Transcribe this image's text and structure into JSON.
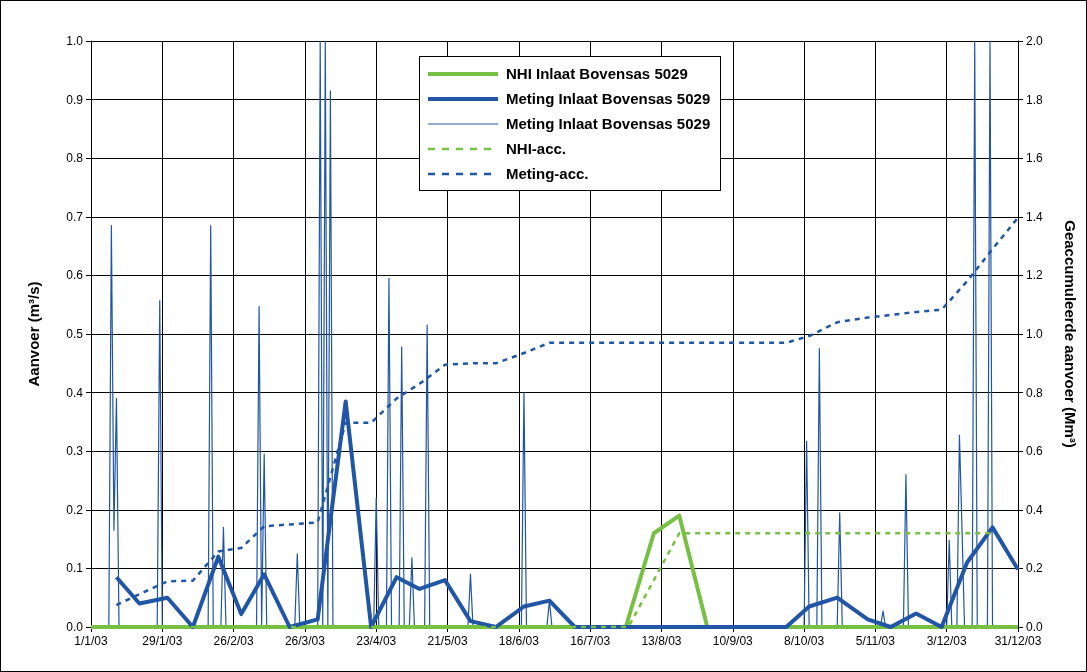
{
  "chart_data": {
    "type": "line",
    "xlabel": null,
    "ylabel": "Aanvoer (m³/s)",
    "y2label": "Geaccumuleerde aanvoer (Mm³)",
    "xlim": [
      "2003-01-01",
      "2003-12-31"
    ],
    "xticks": [
      {
        "value": "2003-01-01",
        "label": "1/1/03"
      },
      {
        "value": "2003-01-29",
        "label": "29/1/03"
      },
      {
        "value": "2003-02-26",
        "label": "26/2/03"
      },
      {
        "value": "2003-03-26",
        "label": "26/3/03"
      },
      {
        "value": "2003-04-23",
        "label": "23/4/03"
      },
      {
        "value": "2003-05-21",
        "label": "21/5/03"
      },
      {
        "value": "2003-06-18",
        "label": "18/6/03"
      },
      {
        "value": "2003-07-16",
        "label": "16/7/03"
      },
      {
        "value": "2003-08-13",
        "label": "13/8/03"
      },
      {
        "value": "2003-09-10",
        "label": "10/9/03"
      },
      {
        "value": "2003-10-08",
        "label": "8/10/03"
      },
      {
        "value": "2003-11-05",
        "label": "5/11/03"
      },
      {
        "value": "2003-12-03",
        "label": "3/12/03"
      },
      {
        "value": "2003-12-31",
        "label": "31/12/03"
      }
    ],
    "ylim": [
      0,
      1
    ],
    "yticks": [
      {
        "value": 0,
        "label": "0.0"
      },
      0.1,
      0.2,
      0.3,
      0.4,
      0.5,
      0.6,
      0.7,
      0.8,
      0.9,
      {
        "value": 1,
        "label": "1.0"
      }
    ],
    "y2lim": [
      0,
      2
    ],
    "y2ticks": [
      {
        "value": 0,
        "label": "0.0"
      },
      0.2,
      0.4,
      0.6,
      0.8,
      {
        "value": 1,
        "label": "1.0"
      },
      1.2,
      1.4,
      1.6,
      1.8,
      {
        "value": 2,
        "label": "2.0"
      }
    ],
    "grid": true,
    "legend": "top",
    "marker": "none",
    "series": [
      {
        "name": "NHI Inlaat Bovensas 5029",
        "color": "#77c043",
        "line_style": "solid",
        "x": [
          "2003-01-01",
          "2003-07-30",
          "2003-08-10",
          "2003-08-20",
          "2003-08-31",
          "2003-12-31"
        ],
        "values": [
          0,
          0,
          0.16,
          0.19,
          0,
          0
        ]
      },
      {
        "name": "Meting Inlaat Bovensas 5029",
        "color": "#2155a5",
        "line_style": "solid",
        "x": [
          "2003-01-11",
          "2003-01-20",
          "2003-01-31",
          "2003-02-10",
          "2003-02-20",
          "2003-03-01",
          "2003-03-10",
          "2003-03-20",
          "2003-03-31",
          "2003-04-11",
          "2003-04-21",
          "2003-05-01",
          "2003-05-10",
          "2003-05-20",
          "2003-05-30",
          "2003-06-09",
          "2003-06-20",
          "2003-06-30",
          "2003-07-10",
          "2003-10-01",
          "2003-10-10",
          "2003-10-21",
          "2003-11-02",
          "2003-11-11",
          "2003-11-21",
          "2003-12-01",
          "2003-12-11",
          "2003-12-21",
          "2003-12-31"
        ],
        "values": [
          0.085,
          0.04,
          0.05,
          0,
          0.12,
          0.022,
          0.09,
          0,
          0.013,
          0.385,
          0,
          0.085,
          0.065,
          0.08,
          0.01,
          0,
          0.035,
          0.045,
          0,
          0,
          0.035,
          0.05,
          0.013,
          0,
          0.023,
          0,
          0.11,
          0.17,
          0.098
        ]
      },
      {
        "name": "Meting Inlaat Bovensas 5029",
        "color": "#2155a5",
        "line_style": "solid",
        "x": [
          "2003-01-01",
          "2003-01-08",
          "2003-01-09",
          "2003-01-10",
          "2003-01-11",
          "2003-01-12",
          "2003-01-27",
          "2003-01-28",
          "2003-01-29",
          "2003-02-16",
          "2003-02-17",
          "2003-02-18",
          "2003-02-21",
          "2003-02-22",
          "2003-02-23",
          "2003-03-07",
          "2003-03-08",
          "2003-03-09",
          "2003-03-10",
          "2003-03-11",
          "2003-03-22",
          "2003-03-23",
          "2003-03-24",
          "2003-03-31",
          "2003-04-01",
          "2003-04-02",
          "2003-04-03",
          "2003-04-04",
          "2003-04-05",
          "2003-04-06",
          "2003-04-22",
          "2003-04-23",
          "2003-04-24",
          "2003-04-27",
          "2003-04-28",
          "2003-04-29",
          "2003-05-02",
          "2003-05-03",
          "2003-05-04",
          "2003-05-06",
          "2003-05-07",
          "2003-05-08",
          "2003-05-12",
          "2003-05-13",
          "2003-05-14",
          "2003-05-29",
          "2003-05-30",
          "2003-05-31",
          "2003-06-19",
          "2003-06-20",
          "2003-06-21",
          "2003-06-29",
          "2003-06-30",
          "2003-07-01",
          "2003-10-08",
          "2003-10-09",
          "2003-10-10",
          "2003-10-13",
          "2003-10-14",
          "2003-10-15",
          "2003-10-21",
          "2003-10-22",
          "2003-10-23",
          "2003-11-07",
          "2003-11-08",
          "2003-11-09",
          "2003-11-16",
          "2003-11-17",
          "2003-11-18",
          "2003-12-03",
          "2003-12-04",
          "2003-12-05",
          "2003-12-07",
          "2003-12-08",
          "2003-12-09",
          "2003-12-10",
          "2003-12-13",
          "2003-12-14",
          "2003-12-15",
          "2003-12-19",
          "2003-12-20",
          "2003-12-21",
          "2003-12-31"
        ],
        "values": [
          0,
          0,
          0.685,
          0.165,
          0.39,
          0,
          0,
          0.557,
          0,
          0,
          0.685,
          0,
          0,
          0.17,
          0,
          0,
          0.547,
          0,
          0.295,
          0,
          0,
          0.125,
          0,
          0,
          1,
          0,
          1,
          0,
          0.915,
          0,
          0,
          0.22,
          0,
          0,
          0.595,
          0,
          0,
          0.478,
          0,
          0,
          0.118,
          0,
          0,
          0.515,
          0,
          0,
          0.09,
          0,
          0,
          0.4,
          0,
          0,
          0.045,
          0,
          0,
          0.317,
          0,
          0,
          0.475,
          0,
          0,
          0.195,
          0,
          0,
          0.027,
          0,
          0,
          0.26,
          0,
          0,
          0.148,
          0,
          0,
          0.327,
          0.17,
          0,
          0,
          1,
          0,
          0,
          1,
          0,
          0
        ]
      },
      {
        "name": "NHI-acc.",
        "color": "#77c043",
        "line_style": "dashed",
        "axis": "y2",
        "x": [
          "2003-01-01",
          "2003-07-31",
          "2003-08-20",
          "2003-12-21"
        ],
        "values": [
          0,
          0,
          0.32,
          0.32
        ]
      },
      {
        "name": "Meting-acc.",
        "color": "#2155a5",
        "line_style": "dashed",
        "axis": "y2",
        "x": [
          "2003-01-11",
          "2003-01-20",
          "2003-01-31",
          "2003-02-10",
          "2003-02-20",
          "2003-03-01",
          "2003-03-10",
          "2003-03-20",
          "2003-03-31",
          "2003-04-11",
          "2003-04-21",
          "2003-05-01",
          "2003-05-10",
          "2003-05-20",
          "2003-05-30",
          "2003-06-09",
          "2003-06-20",
          "2003-06-30",
          "2003-10-01",
          "2003-10-10",
          "2003-10-21",
          "2003-11-02",
          "2003-11-11",
          "2003-11-21",
          "2003-12-01",
          "2003-12-11",
          "2003-12-21",
          "2003-12-31"
        ],
        "values": [
          0.075,
          0.112,
          0.156,
          0.158,
          0.258,
          0.27,
          0.344,
          0.35,
          0.357,
          0.697,
          0.697,
          0.78,
          0.83,
          0.895,
          0.9,
          0.9,
          0.935,
          0.97,
          0.97,
          0.993,
          1.04,
          1.056,
          1.065,
          1.075,
          1.083,
          1.18,
          1.29,
          1.397
        ]
      }
    ]
  }
}
